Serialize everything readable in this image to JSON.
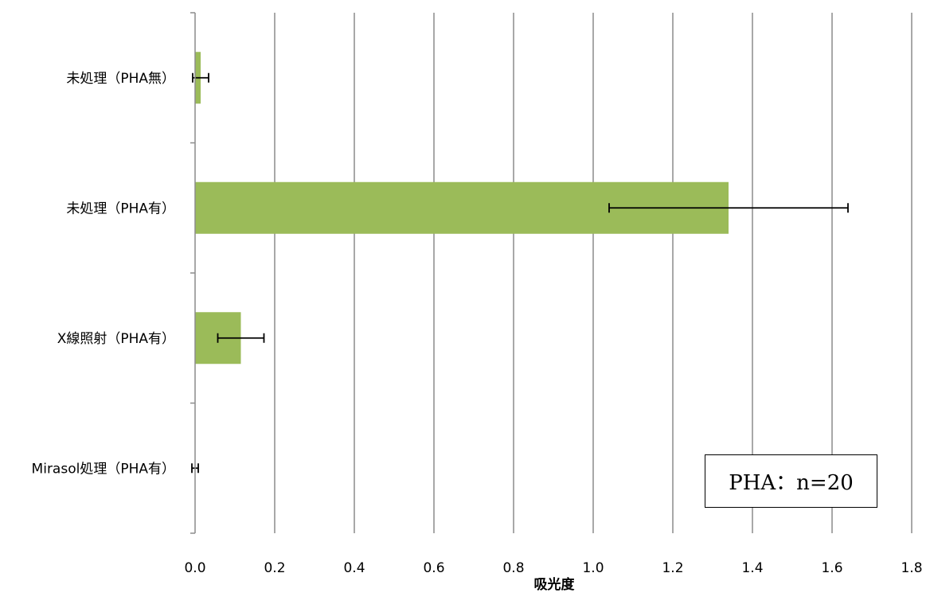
{
  "chart_data": {
    "type": "bar",
    "orientation": "horizontal",
    "categories": [
      "未処理（PHA無）",
      "未処理（PHA有）",
      "X線照射（PHA有）",
      "Mirasol処理（PHA有）"
    ],
    "values": [
      0.014,
      1.34,
      0.115,
      0.0
    ],
    "error": [
      0.02,
      0.3,
      0.058,
      0.008
    ],
    "xlabel": "吸光度",
    "xlim": [
      0.0,
      1.8
    ],
    "xticks": [
      "0.0",
      "0.2",
      "0.4",
      "0.6",
      "0.8",
      "1.0",
      "1.2",
      "1.4",
      "1.6",
      "1.8"
    ],
    "grid": "vertical",
    "bar_color": "#9BBB59",
    "annotation": "PHA：n=20"
  }
}
